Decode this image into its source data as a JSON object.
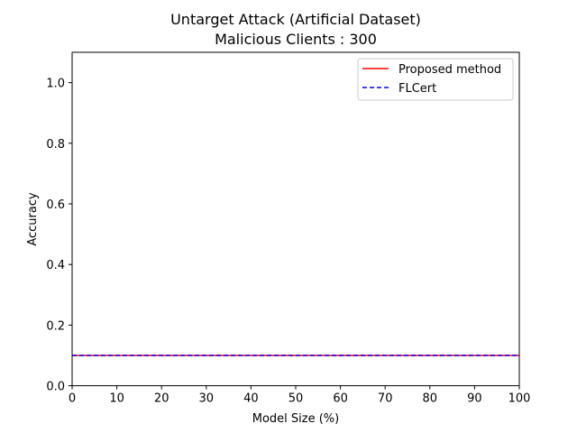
{
  "chart_data": {
    "type": "line",
    "title": "Untarget Attack (Artificial Dataset)",
    "subtitle": "Malicious Clients : 300",
    "xlabel": "Model Size (%)",
    "ylabel": "Accuracy",
    "xlim": [
      0,
      100
    ],
    "ylim": [
      0,
      1.1
    ],
    "xticks": [
      0,
      10,
      20,
      30,
      40,
      50,
      60,
      70,
      80,
      90,
      100
    ],
    "yticks": [
      0.0,
      0.2,
      0.4,
      0.6,
      0.8,
      1.0
    ],
    "xtick_labels": [
      "0",
      "10",
      "20",
      "30",
      "40",
      "50",
      "60",
      "70",
      "80",
      "90",
      "100"
    ],
    "ytick_labels": [
      "0.0",
      "0.2",
      "0.4",
      "0.6",
      "0.8",
      "1.0"
    ],
    "grid": false,
    "legend_position": "top-right",
    "series": [
      {
        "name": "Proposed method",
        "color": "#ff0000",
        "style": "solid",
        "x": [
          0,
          100
        ],
        "y": [
          0.1,
          0.1
        ]
      },
      {
        "name": "FLCert",
        "color": "#0000ff",
        "style": "dashed",
        "x": [
          0,
          100
        ],
        "y": [
          0.1,
          0.1
        ]
      }
    ]
  }
}
